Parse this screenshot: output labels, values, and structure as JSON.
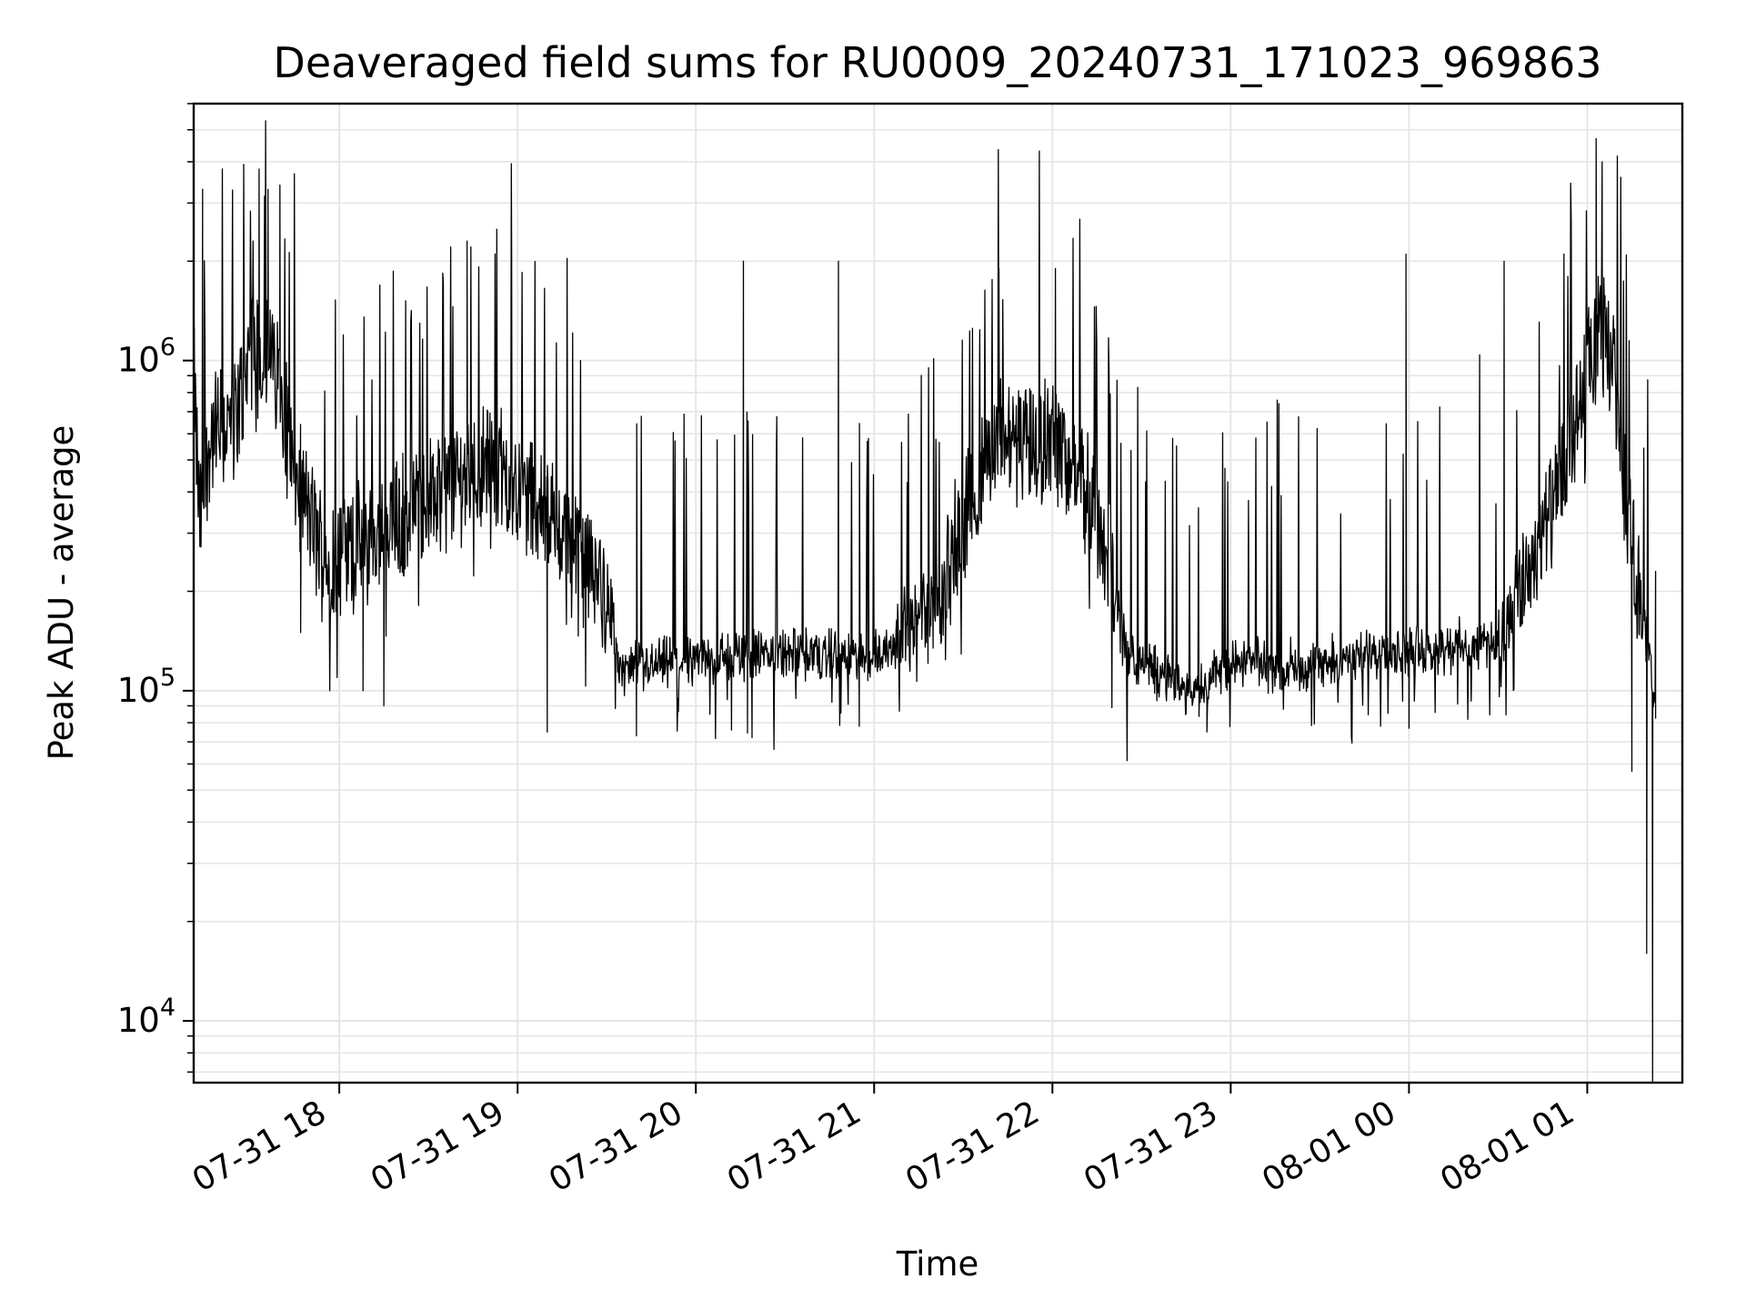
{
  "chart_data": {
    "type": "line",
    "title": "Deaveraged field sums for RU0009_20240731_171023_969863",
    "xlabel": "Time",
    "ylabel": "Peak ADU - average",
    "yscale": "log",
    "grid": true,
    "line_color": "#000000",
    "grid_color": "#e6e6e6",
    "xlim": [
      "2024-07-31 17:11",
      "2024-08-01 01:32"
    ],
    "ylim": [
      6500,
      6000000
    ],
    "x_ticks": [
      {
        "t": "2024-07-31 18:00",
        "label": "07-31 18"
      },
      {
        "t": "2024-07-31 19:00",
        "label": "07-31 19"
      },
      {
        "t": "2024-07-31 20:00",
        "label": "07-31 20"
      },
      {
        "t": "2024-07-31 21:00",
        "label": "07-31 21"
      },
      {
        "t": "2024-07-31 22:00",
        "label": "07-31 22"
      },
      {
        "t": "2024-07-31 23:00",
        "label": "07-31 23"
      },
      {
        "t": "2024-08-01 00:00",
        "label": "08-01 00"
      },
      {
        "t": "2024-08-01 01:00",
        "label": "08-01 01"
      }
    ],
    "y_ticks": [
      {
        "value": 10000,
        "base": "10",
        "exp": "4"
      },
      {
        "value": 100000,
        "base": "10",
        "exp": "5"
      },
      {
        "value": 1000000,
        "base": "10",
        "exp": "6"
      }
    ],
    "series": [
      {
        "baseline": [
          {
            "t": "2024-07-31 17:11",
            "y": 900000
          },
          {
            "t": "2024-07-31 17:13",
            "y": 320000
          },
          {
            "t": "2024-07-31 17:17",
            "y": 600000
          },
          {
            "t": "2024-07-31 17:25",
            "y": 650000
          },
          {
            "t": "2024-07-31 17:31",
            "y": 1200000
          },
          {
            "t": "2024-07-31 17:40",
            "y": 900000
          },
          {
            "t": "2024-07-31 17:45",
            "y": 450000
          },
          {
            "t": "2024-07-31 17:55",
            "y": 250000
          },
          {
            "t": "2024-07-31 18:10",
            "y": 280000
          },
          {
            "t": "2024-07-31 18:30",
            "y": 380000
          },
          {
            "t": "2024-07-31 18:50",
            "y": 500000
          },
          {
            "t": "2024-07-31 19:10",
            "y": 350000
          },
          {
            "t": "2024-07-31 19:30",
            "y": 200000
          },
          {
            "t": "2024-07-31 19:35",
            "y": 115000
          },
          {
            "t": "2024-07-31 20:00",
            "y": 125000
          },
          {
            "t": "2024-07-31 20:30",
            "y": 130000
          },
          {
            "t": "2024-07-31 21:00",
            "y": 125000
          },
          {
            "t": "2024-07-31 21:20",
            "y": 180000
          },
          {
            "t": "2024-07-31 21:40",
            "y": 550000
          },
          {
            "t": "2024-07-31 22:00",
            "y": 600000
          },
          {
            "t": "2024-07-31 22:15",
            "y": 350000
          },
          {
            "t": "2024-07-31 22:25",
            "y": 130000
          },
          {
            "t": "2024-07-31 22:45",
            "y": 100000
          },
          {
            "t": "2024-07-31 23:00",
            "y": 120000
          },
          {
            "t": "2024-07-31 23:30",
            "y": 120000
          },
          {
            "t": "2024-07-31 23:48",
            "y": 130000
          },
          {
            "t": "2024-08-01 00:30",
            "y": 140000
          },
          {
            "t": "2024-08-01 00:50",
            "y": 380000
          },
          {
            "t": "2024-08-01 01:00",
            "y": 900000
          },
          {
            "t": "2024-08-01 01:05",
            "y": 1300000
          },
          {
            "t": "2024-08-01 01:10",
            "y": 800000
          },
          {
            "t": "2024-08-01 01:14",
            "y": 300000
          },
          {
            "t": "2024-08-01 01:20",
            "y": 150000
          },
          {
            "t": "2024-08-01 01:23",
            "y": 80000
          }
        ],
        "spikes": [
          {
            "t": "2024-07-31 17:14",
            "y": 3300000
          },
          {
            "t": "2024-07-31 17:31",
            "y": 2300000
          },
          {
            "t": "2024-07-31 17:33",
            "y": 3800000
          },
          {
            "t": "2024-07-31 17:36",
            "y": 3300000
          },
          {
            "t": "2024-07-31 17:40",
            "y": 3400000
          },
          {
            "t": "2024-07-31 18:43",
            "y": 2300000
          },
          {
            "t": "2024-07-31 18:58",
            "y": 2200000
          },
          {
            "t": "2024-07-31 20:16",
            "y": 2000000
          },
          {
            "t": "2024-07-31 20:48",
            "y": 2000000
          },
          {
            "t": "2024-07-31 21:42",
            "y": 1900000
          },
          {
            "t": "2024-07-31 22:01",
            "y": 1900000
          },
          {
            "t": "2024-07-31 23:59",
            "y": 2100000
          },
          {
            "t": "2024-08-01 00:32",
            "y": 2000000
          },
          {
            "t": "2024-08-01 01:03",
            "y": 4700000
          },
          {
            "t": "2024-08-01 01:05",
            "y": 4000000
          },
          {
            "t": "2024-08-01 01:23",
            "y": 230000
          }
        ],
        "dips": [
          {
            "t": "2024-07-31 17:47",
            "y": 150000
          },
          {
            "t": "2024-07-31 18:08",
            "y": 100000
          },
          {
            "t": "2024-07-31 18:15",
            "y": 90000
          },
          {
            "t": "2024-07-31 19:10",
            "y": 75000
          },
          {
            "t": "2024-07-31 19:40",
            "y": 73000
          },
          {
            "t": "2024-07-31 20:12",
            "y": 76000
          },
          {
            "t": "2024-07-31 20:55",
            "y": 78000
          },
          {
            "t": "2024-07-31 22:52",
            "y": 75000
          },
          {
            "t": "2024-08-01 00:00",
            "y": 77000
          },
          {
            "t": "2024-08-01 01:15",
            "y": 57000
          },
          {
            "t": "2024-08-01 01:20",
            "y": 16000
          },
          {
            "t": "2024-08-01 01:22",
            "y": 6500
          }
        ]
      }
    ]
  }
}
